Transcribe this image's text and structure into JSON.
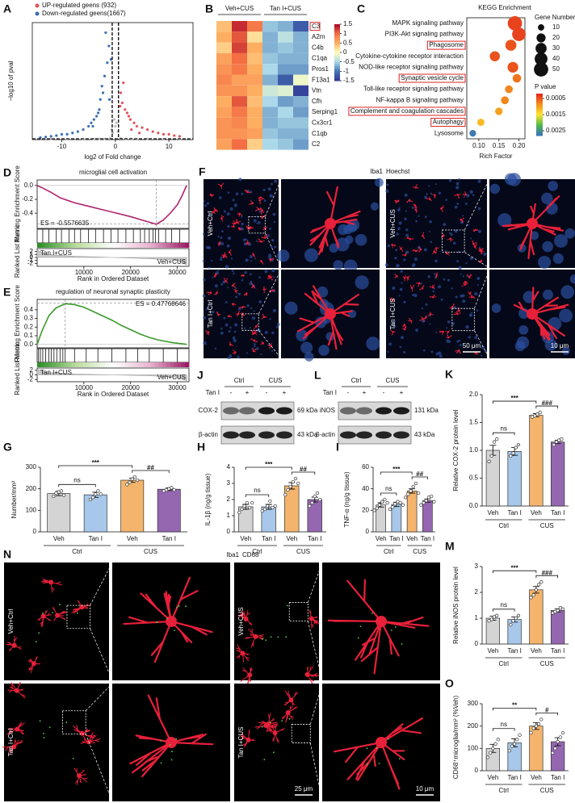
{
  "chart_data": [
    {
      "panel": "A",
      "type": "scatter",
      "xlabel": "log2 of Fold change",
      "ylabel": "−log10 of pval",
      "xlim": [
        -15.5,
        14.5
      ],
      "ylim": [
        0,
        175
      ],
      "xticks": [
        -10,
        0,
        10
      ],
      "vlines": [
        -0.585,
        0.585
      ],
      "hline": 1.3,
      "series": [
        {
          "color": "#bdbdbd",
          "x": [
            -12,
            -9,
            -6,
            -4,
            -2,
            -1,
            -0.5,
            0,
            0.5,
            1,
            2,
            4,
            6,
            9,
            12,
            -3,
            3,
            -0.2,
            0.2,
            -0.7
          ],
          "y": [
            1,
            0.8,
            0.6,
            1,
            1.1,
            2,
            10,
            20,
            12,
            2,
            1,
            0.6,
            0.8,
            0.5,
            0.7,
            0.9,
            0.9,
            30,
            25,
            15
          ]
        },
        {
          "name": "UP-regulated geens (932)",
          "color": "#e0545c",
          "x": [
            1,
            1.3,
            1.8,
            2.2,
            2.8,
            3.5,
            4,
            5,
            6,
            7,
            8,
            9,
            10,
            11,
            1.5,
            2.5,
            3,
            0.9,
            12,
            4.5
          ],
          "y": [
            70,
            55,
            45,
            40,
            30,
            25,
            20,
            18,
            15,
            12,
            10,
            8,
            8,
            6,
            85,
            35,
            15,
            50,
            5,
            10
          ]
        },
        {
          "name": "Down-regulated geens(1667)",
          "color": "#3a6db5",
          "x": [
            -1.2,
            -1.5,
            -2,
            -2.3,
            -2.8,
            -3,
            -3.5,
            -4,
            -4.5,
            -5,
            -6,
            -7,
            -8,
            -9,
            -10,
            -11,
            -12,
            -13,
            -1.8,
            -2.5,
            -1.1,
            -0.8,
            -3.2,
            -4.2,
            -14
          ],
          "y": [
            140,
            115,
            95,
            70,
            60,
            45,
            35,
            30,
            25,
            20,
            15,
            12,
            10,
            8,
            8,
            6,
            5,
            4,
            160,
            80,
            60,
            120,
            40,
            20,
            3
          ]
        }
      ]
    },
    {
      "panel": "B",
      "type": "heatmap",
      "groups": [
        "Veh+CUS",
        "Tan I+CUS"
      ],
      "rows": [
        "C3",
        "A2m",
        "C4b",
        "C1qa",
        "Pros1",
        "F13a1",
        "Vtn",
        "Cfh",
        "Serping1",
        "Cx3cr1",
        "C1qb",
        "C2"
      ],
      "highlight": [
        true,
        false,
        false,
        false,
        false,
        false,
        false,
        false,
        false,
        false,
        false,
        false
      ],
      "values": [
        [
          0.4,
          1.3,
          0.9,
          -0.6,
          -0.7,
          -1.2
        ],
        [
          0.5,
          1.1,
          0.2,
          -0.7,
          -0.4,
          -0.7
        ],
        [
          0.3,
          1.2,
          0.5,
          -0.7,
          -0.6,
          -0.7
        ],
        [
          0.6,
          1.0,
          0.4,
          -0.6,
          -0.7,
          -0.7
        ],
        [
          0.7,
          0.9,
          0.5,
          -0.5,
          -0.8,
          -0.8
        ],
        [
          0.8,
          0.6,
          0.6,
          -0.7,
          -1.2,
          -0.1
        ],
        [
          0.7,
          0.7,
          0.5,
          -0.3,
          -0.2,
          -1.4
        ],
        [
          0.5,
          1.1,
          0.4,
          -0.5,
          -0.8,
          -0.7
        ],
        [
          0.6,
          0.9,
          0.5,
          -0.7,
          -0.5,
          -0.8
        ],
        [
          0.7,
          0.8,
          0.5,
          -0.7,
          -0.6,
          -0.6
        ],
        [
          0.7,
          0.7,
          0.6,
          -0.6,
          -0.7,
          -0.7
        ],
        [
          0.6,
          1.0,
          0.3,
          -0.5,
          -0.6,
          -0.8
        ]
      ],
      "clim": [
        -1.5,
        1.5
      ],
      "cticks": [
        1.5,
        1,
        0.5,
        0,
        -0.5,
        -1,
        -1.5
      ]
    },
    {
      "panel": "C",
      "type": "dot",
      "title": "KEGG Enrichment",
      "xlabel": "Rich Factor",
      "size_title": "Gene Number",
      "color_title": "P value",
      "categories": [
        "MAPK signaling pathway",
        "PI3K-Akt signaling pathway",
        "Phagosome",
        "Cytokine-cytokine receptor interaction",
        "NOD-like receptor signaling pathway",
        "Synaptic vesicle cycle",
        "Toll-like receptor signaling pathway",
        "NF-kappa B signaling pathway",
        "Complement and coagulation cascades",
        "Autophagy",
        "Lysosome"
      ],
      "highlight": [
        false,
        false,
        true,
        false,
        false,
        true,
        false,
        false,
        true,
        true,
        false
      ],
      "x": [
        0.19,
        0.2,
        0.18,
        0.14,
        0.185,
        0.195,
        0.175,
        0.165,
        0.15,
        0.105,
        0.085
      ],
      "sizes": [
        50,
        45,
        30,
        25,
        28,
        18,
        15,
        15,
        14,
        13,
        11
      ],
      "pvalues": [
        0.0004,
        0.0004,
        0.0005,
        0.0005,
        0.0005,
        0.0007,
        0.0008,
        0.0008,
        0.001,
        0.0012,
        0.0027
      ],
      "xlim": [
        0.07,
        0.215
      ],
      "xticks": [
        {
          "value": 0.1,
          "label": "0.10"
        },
        {
          "value": 0.15,
          "label": "0.15"
        },
        {
          "value": 0.2,
          "label": "0.20"
        }
      ],
      "size_legend": [
        10,
        20,
        30,
        40,
        50
      ],
      "clim": [
        0.0002,
        0.0028
      ],
      "cticks": [
        0.0005,
        0.0015,
        0.0025
      ]
    },
    {
      "panel": "D",
      "type": "gsea",
      "title": "microglial cell activation",
      "ylabel": "Running Enrichment Score",
      "ylabel2": "Ranked List Metric",
      "xlabel": "Rank in Ordered Dataset",
      "es_label": "ES = -0.5576635",
      "es": -0.5576635,
      "peak": 25500,
      "left_label": "Tan I+CUS",
      "right_label": "Veh+CUS",
      "es_x": [
        0,
        1000,
        3000,
        5000,
        8000,
        11000,
        14000,
        17000,
        20000,
        22000,
        24000,
        25500,
        27000,
        28500,
        30000,
        31000,
        32000
      ],
      "es_y": [
        0,
        -0.03,
        -0.1,
        -0.18,
        -0.25,
        -0.3,
        -0.35,
        -0.4,
        -0.45,
        -0.49,
        -0.53,
        -0.56,
        -0.5,
        -0.4,
        -0.28,
        -0.15,
        0
      ],
      "hits": [
        1200,
        2500,
        4100,
        5200,
        6800,
        8000,
        9300,
        11000,
        12500,
        14200,
        15800,
        17300,
        19000,
        20600,
        22100,
        23000,
        24000,
        24800,
        25300,
        26000,
        27500,
        28800,
        30500
      ],
      "metric_x": [
        0,
        2000,
        8000,
        16000,
        24000,
        30000,
        32000
      ],
      "metric_y": [
        2.5,
        1,
        0.4,
        0,
        -0.4,
        -1,
        -2.5
      ],
      "xlim": [
        0,
        32500
      ],
      "xticks": [
        10000,
        20000,
        30000
      ],
      "ylim": [
        -0.62,
        0.08
      ],
      "yticks": [
        {
          "value": 0,
          "label": "0.0"
        },
        {
          "value": -0.2,
          "label": "-0.2"
        },
        {
          "value": -0.4,
          "label": "-0.4"
        }
      ],
      "y2lim": [
        -3,
        3
      ],
      "y2ticks": [
        2,
        1,
        0,
        -1,
        -2
      ]
    },
    {
      "panel": "E",
      "type": "gsea",
      "title": "regulation of neuronal synaptic plasticity",
      "ylabel": "Running Enrichment Score",
      "ylabel2": "Ranked List Metric",
      "xlabel": "Rank in Ordered Dataset",
      "es_label": "ES = 0.47768646",
      "es": 0.47768646,
      "peak": 6000,
      "left_label": "Tan I+CUS",
      "right_label": "Veh+CUS",
      "es_x": [
        0,
        1000,
        2500,
        4000,
        6000,
        8000,
        10000,
        12000,
        14000,
        16000,
        18000,
        20000,
        22000,
        24000,
        26000,
        29000,
        32000
      ],
      "es_y": [
        0,
        0.15,
        0.33,
        0.42,
        0.47,
        0.46,
        0.43,
        0.38,
        0.33,
        0.28,
        0.22,
        0.17,
        0.12,
        0.08,
        0.05,
        0.02,
        0
      ],
      "hits": [
        300,
        700,
        1200,
        1800,
        2500,
        3000,
        3600,
        4200,
        4900,
        5500,
        6000,
        8000,
        10500,
        13000,
        16000,
        19000,
        21500,
        24000,
        27000,
        30000
      ],
      "metric_x": [
        0,
        2000,
        8000,
        16000,
        24000,
        30000,
        32000
      ],
      "metric_y": [
        2.5,
        1,
        0.4,
        0,
        -0.4,
        -1,
        -2.5
      ],
      "xlim": [
        0,
        32500
      ],
      "xticks": [
        10000,
        20000,
        30000
      ],
      "ylim": [
        -0.04,
        0.52
      ],
      "yticks": [
        {
          "value": 0.4,
          "label": "0.4"
        },
        {
          "value": 0.3,
          "label": "0.3"
        },
        {
          "value": 0.2,
          "label": "0.2"
        },
        {
          "value": 0.1,
          "label": "0.1"
        },
        {
          "value": 0,
          "label": "0.0"
        }
      ],
      "y2lim": [
        -3,
        3
      ],
      "y2ticks": [
        2,
        0,
        -2
      ]
    },
    {
      "panel": "G",
      "type": "bar",
      "ylabel": "Number/mm²",
      "categories": [
        "Veh",
        "Tan I",
        "Veh",
        "Tan I"
      ],
      "groups": [
        "Ctrl",
        "CUS"
      ],
      "values": [
        178,
        172,
        240,
        198
      ],
      "errors": [
        10,
        12,
        10,
        6
      ],
      "colors": [
        "#d4d4d4",
        "#a7c8ea",
        "#f4b46c",
        "#9467b0"
      ],
      "points": [
        [
          165,
          180,
          185,
          190,
          170
        ],
        [
          150,
          160,
          175,
          190,
          175
        ],
        [
          220,
          230,
          245,
          255,
          240
        ],
        [
          190,
          195,
          200,
          205,
          195
        ]
      ],
      "annotations": [
        "ns",
        "***",
        "##"
      ],
      "ylim": [
        0,
        300
      ],
      "yticks": [
        0,
        100,
        200,
        300
      ]
    },
    {
      "panel": "H",
      "type": "bar",
      "ylabel": "IL-1β (ng/g tissue)",
      "categories": [
        "Veh",
        "Tan I",
        "Veh",
        "Tan I"
      ],
      "groups": [
        "Ctrl",
        "CUS"
      ],
      "values": [
        1.55,
        1.55,
        2.85,
        2.0
      ],
      "errors": [
        0.15,
        0.15,
        0.2,
        0.15
      ],
      "colors": [
        "#d4d4d4",
        "#a7c8ea",
        "#f4b46c",
        "#9467b0"
      ],
      "points": [
        [
          1.2,
          1.4,
          1.6,
          1.8,
          1.5,
          1.8
        ],
        [
          1.3,
          1.4,
          1.6,
          1.9,
          1.5,
          1.6
        ],
        [
          2.3,
          2.6,
          2.8,
          3.1,
          3.3,
          3.0
        ],
        [
          1.6,
          1.8,
          2.2,
          2.4,
          2.0
        ]
      ],
      "annotations": [
        "ns",
        "***",
        "##"
      ],
      "ylim": [
        0,
        4
      ],
      "yticks": [
        0,
        1,
        2,
        3,
        4
      ]
    },
    {
      "panel": "I",
      "type": "bar",
      "ylabel": "TNF-α (ng/g tissue)",
      "categories": [
        "Veh",
        "Tan I",
        "Veh",
        "Tan I"
      ],
      "groups": [
        "Ctrl",
        "CUS"
      ],
      "values": [
        25,
        25.5,
        38,
        29
      ],
      "errors": [
        2,
        2,
        2,
        1.5
      ],
      "colors": [
        "#d4d4d4",
        "#a7c8ea",
        "#f4b46c",
        "#9467b0"
      ],
      "points": [
        [
          20,
          22,
          25,
          28,
          30,
          27
        ],
        [
          21,
          23,
          26,
          28,
          27,
          25
        ],
        [
          32,
          35,
          38,
          42,
          45,
          36
        ],
        [
          25,
          27,
          29,
          32,
          33,
          28
        ]
      ],
      "annotations": [
        "ns",
        "***",
        "##"
      ],
      "ylim": [
        0,
        60
      ],
      "yticks": [
        0,
        20,
        40,
        60
      ]
    },
    {
      "panel": "K",
      "type": "bar",
      "ylabel": "Relative COX-2 protein level",
      "categories": [
        "Veh",
        "Tan I",
        "Veh",
        "Tan I"
      ],
      "groups": [
        "Ctrl",
        "CUS"
      ],
      "values": [
        1.0,
        0.98,
        1.63,
        1.15
      ],
      "errors": [
        0.09,
        0.07,
        0.03,
        0.03
      ],
      "colors": [
        "#d4d4d4",
        "#a7c8ea",
        "#f4b46c",
        "#9467b0"
      ],
      "points": [
        [
          0.8,
          0.9,
          1.15,
          1.2
        ],
        [
          0.9,
          0.95,
          1.05,
          1.1
        ],
        [
          1.6,
          1.62,
          1.65,
          1.68
        ],
        [
          1.1,
          1.15,
          1.18,
          1.2
        ]
      ],
      "annotations": [
        "ns",
        "***",
        "###"
      ],
      "ylim": [
        0,
        2
      ],
      "yticks": [
        {
          "value": 0,
          "label": "0.0"
        },
        {
          "value": 0.5,
          "label": "0.5"
        },
        {
          "value": 1,
          "label": "1.0"
        },
        {
          "value": 1.5,
          "label": "1.5"
        },
        {
          "value": 2,
          "label": "2.0"
        }
      ]
    },
    {
      "panel": "M",
      "type": "bar",
      "ylabel": "Relative iNOS protein level",
      "categories": [
        "Veh",
        "Tan I",
        "Veh",
        "Tan I"
      ],
      "groups": [
        "Ctrl",
        "CUS"
      ],
      "values": [
        1.0,
        0.95,
        2.1,
        1.3
      ],
      "errors": [
        0.08,
        0.1,
        0.13,
        0.06
      ],
      "colors": [
        "#d4d4d4",
        "#a7c8ea",
        "#f4b46c",
        "#9467b0"
      ],
      "points": [
        [
          0.9,
          0.95,
          1.05,
          1.1
        ],
        [
          0.75,
          0.9,
          1.0,
          1.1
        ],
        [
          1.8,
          1.9,
          2.1,
          2.3,
          2.4
        ],
        [
          1.2,
          1.25,
          1.3,
          1.4,
          1.35
        ]
      ],
      "annotations": [
        "ns",
        "***",
        "###"
      ],
      "ylim": [
        0,
        3
      ],
      "yticks": [
        0,
        1,
        2,
        3
      ]
    },
    {
      "panel": "O",
      "type": "bar",
      "ylabel": "CD68⁺microglia/mm² (%Veh)",
      "categories": [
        "Veh",
        "Tan I",
        "Veh",
        "Tan I"
      ],
      "groups": [
        "Ctrl",
        "CUS"
      ],
      "values": [
        100,
        125,
        200,
        130
      ],
      "errors": [
        18,
        18,
        15,
        18
      ],
      "colors": [
        "#d4d4d4",
        "#a7c8ea",
        "#f4b46c",
        "#9467b0"
      ],
      "points": [
        [
          60,
          80,
          100,
          120,
          140
        ],
        [
          90,
          110,
          120,
          140,
          160
        ],
        [
          170,
          190,
          200,
          210,
          230
        ],
        [
          80,
          100,
          130,
          150,
          170
        ]
      ],
      "annotations": [
        "ns",
        "**",
        "#"
      ],
      "ylim": [
        0,
        300
      ],
      "yticks": [
        0,
        100,
        200,
        300
      ]
    }
  ],
  "panels": {
    "F": {
      "panel": "F",
      "stains": [
        "Iba1",
        "Hoechst"
      ],
      "groups": [
        "Veh+Ctrl",
        "Veh+CUS",
        "Tan I+Ctrl",
        "Tan I+CUS"
      ],
      "scale_bars": [
        "50 μm",
        "10 μm"
      ]
    },
    "J": {
      "panel": "J",
      "groups": [
        "Ctrl",
        "CUS"
      ],
      "treatment": "Tan I",
      "signs": [
        "-",
        "+",
        "-",
        "+"
      ],
      "rows": [
        "COX-2",
        "β-actin"
      ],
      "sizes": [
        "69 kDa",
        "43 kDa"
      ]
    },
    "L": {
      "panel": "L",
      "groups": [
        "Ctrl",
        "CUS"
      ],
      "treatment": "Tan I",
      "signs": [
        "-",
        "+",
        "-",
        "+"
      ],
      "rows": [
        "iNOS",
        "β-actin"
      ],
      "sizes": [
        "131 kDa",
        "43 kDa"
      ]
    },
    "N": {
      "panel": "N",
      "stains": [
        "Iba1",
        "CD68"
      ],
      "groups": [
        "Veh+Ctrl",
        "Tan I+Ctrl",
        "Veh+CUS",
        "Tan I+CUS"
      ],
      "scale_bars": [
        "25 μm",
        "10 μm"
      ]
    }
  }
}
